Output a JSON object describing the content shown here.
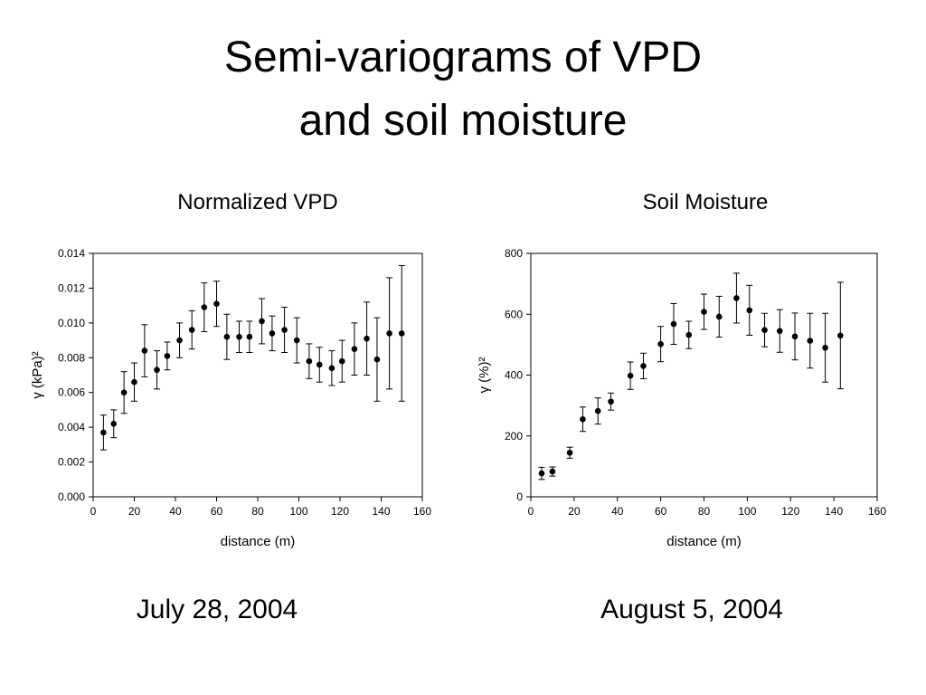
{
  "slide": {
    "title_line1": "Semi-variograms of VPD",
    "title_line2": "and soil moisture",
    "left_date": "July 28, 2004",
    "right_date": "August 5, 2004"
  },
  "chart_data": [
    {
      "type": "scatter",
      "title": "Normalized VPD",
      "xlabel": "distance (m)",
      "ylabel": "γ (kPa)²",
      "xlim": [
        0,
        160
      ],
      "ylim": [
        0,
        0.014
      ],
      "xticks": [
        "0",
        "20",
        "40",
        "60",
        "80",
        "100",
        "120",
        "140",
        "160"
      ],
      "yticks": [
        "0.000",
        "0.002",
        "0.004",
        "0.006",
        "0.008",
        "0.010",
        "0.012",
        "0.014"
      ],
      "points": [
        {
          "x": 5,
          "y": 0.0037,
          "err": 0.001
        },
        {
          "x": 10,
          "y": 0.0042,
          "err": 0.0008
        },
        {
          "x": 15,
          "y": 0.006,
          "err": 0.0012
        },
        {
          "x": 20,
          "y": 0.0066,
          "err": 0.0011
        },
        {
          "x": 25,
          "y": 0.0084,
          "err": 0.0015
        },
        {
          "x": 31,
          "y": 0.0073,
          "err": 0.0011
        },
        {
          "x": 36,
          "y": 0.0081,
          "err": 0.0008
        },
        {
          "x": 42,
          "y": 0.009,
          "err": 0.001
        },
        {
          "x": 48,
          "y": 0.0096,
          "err": 0.0011
        },
        {
          "x": 54,
          "y": 0.0109,
          "err": 0.0014
        },
        {
          "x": 60,
          "y": 0.0111,
          "err": 0.0013
        },
        {
          "x": 65,
          "y": 0.0092,
          "err": 0.0013
        },
        {
          "x": 71,
          "y": 0.0092,
          "err": 0.0009
        },
        {
          "x": 76,
          "y": 0.0092,
          "err": 0.0009
        },
        {
          "x": 82,
          "y": 0.0101,
          "err": 0.0013
        },
        {
          "x": 87,
          "y": 0.0094,
          "err": 0.001
        },
        {
          "x": 93,
          "y": 0.0096,
          "err": 0.0013
        },
        {
          "x": 99,
          "y": 0.009,
          "err": 0.0013
        },
        {
          "x": 105,
          "y": 0.0078,
          "err": 0.001
        },
        {
          "x": 110,
          "y": 0.0076,
          "err": 0.001
        },
        {
          "x": 116,
          "y": 0.0074,
          "err": 0.001
        },
        {
          "x": 121,
          "y": 0.0078,
          "err": 0.0012
        },
        {
          "x": 127,
          "y": 0.0085,
          "err": 0.0015
        },
        {
          "x": 133,
          "y": 0.0091,
          "err": 0.0021
        },
        {
          "x": 138,
          "y": 0.0079,
          "err": 0.0024
        },
        {
          "x": 144,
          "y": 0.0094,
          "err": 0.0032
        },
        {
          "x": 150,
          "y": 0.0094,
          "err": 0.0039
        }
      ]
    },
    {
      "type": "scatter",
      "title": "Soil Moisture",
      "xlabel": "distance (m)",
      "ylabel": "γ (%)²",
      "xlim": [
        0,
        160
      ],
      "ylim": [
        0,
        800
      ],
      "xticks": [
        "0",
        "20",
        "40",
        "60",
        "80",
        "100",
        "120",
        "140",
        "160"
      ],
      "yticks": [
        "0",
        "200",
        "400",
        "600",
        "800"
      ],
      "points": [
        {
          "x": 5,
          "y": 77,
          "err": 20
        },
        {
          "x": 10,
          "y": 83,
          "err": 15
        },
        {
          "x": 18,
          "y": 145,
          "err": 18
        },
        {
          "x": 24,
          "y": 255,
          "err": 40
        },
        {
          "x": 31,
          "y": 282,
          "err": 43
        },
        {
          "x": 37,
          "y": 313,
          "err": 28
        },
        {
          "x": 46,
          "y": 398,
          "err": 45
        },
        {
          "x": 52,
          "y": 430,
          "err": 42
        },
        {
          "x": 60,
          "y": 502,
          "err": 58
        },
        {
          "x": 66,
          "y": 568,
          "err": 67
        },
        {
          "x": 73,
          "y": 532,
          "err": 45
        },
        {
          "x": 80,
          "y": 608,
          "err": 58
        },
        {
          "x": 87,
          "y": 592,
          "err": 67
        },
        {
          "x": 95,
          "y": 653,
          "err": 82
        },
        {
          "x": 101,
          "y": 613,
          "err": 82
        },
        {
          "x": 108,
          "y": 548,
          "err": 55
        },
        {
          "x": 115,
          "y": 545,
          "err": 70
        },
        {
          "x": 122,
          "y": 527,
          "err": 77
        },
        {
          "x": 129,
          "y": 513,
          "err": 90
        },
        {
          "x": 136,
          "y": 490,
          "err": 113
        },
        {
          "x": 143,
          "y": 530,
          "err": 175
        }
      ]
    }
  ]
}
